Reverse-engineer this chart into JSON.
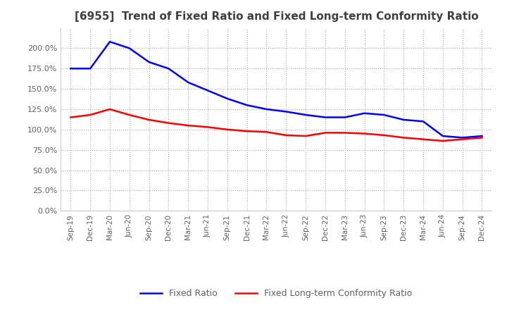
{
  "title": "[6955]  Trend of Fixed Ratio and Fixed Long-term Conformity Ratio",
  "legend": [
    "Fixed Ratio",
    "Fixed Long-term Conformity Ratio"
  ],
  "line_colors": [
    "#0000FF",
    "#FF0000"
  ],
  "x_labels": [
    "Sep-19",
    "Dec-19",
    "Mar-20",
    "Jun-20",
    "Sep-20",
    "Dec-20",
    "Mar-21",
    "Jun-21",
    "Sep-21",
    "Dec-21",
    "Mar-22",
    "Jun-22",
    "Sep-22",
    "Dec-22",
    "Mar-23",
    "Jun-23",
    "Sep-23",
    "Dec-23",
    "Mar-24",
    "Jun-24",
    "Sep-24",
    "Dec-24"
  ],
  "fixed_ratio": [
    175.0,
    175.0,
    208.0,
    200.0,
    183.0,
    175.0,
    158.0,
    148.0,
    138.0,
    130.0,
    125.0,
    122.0,
    118.0,
    115.0,
    115.0,
    120.0,
    118.0,
    112.0,
    110.0,
    92.0,
    90.0,
    92.0
  ],
  "fixed_lt_ratio": [
    115.0,
    118.0,
    125.0,
    118.0,
    112.0,
    108.0,
    105.0,
    103.0,
    100.0,
    98.0,
    97.0,
    93.0,
    92.0,
    96.0,
    96.0,
    95.0,
    93.0,
    90.0,
    88.0,
    86.0,
    88.0,
    90.0
  ],
  "ylim": [
    0.0,
    225.0
  ],
  "yticks": [
    0.0,
    25.0,
    50.0,
    75.0,
    100.0,
    125.0,
    150.0,
    175.0,
    200.0
  ],
  "background_color": "#FFFFFF",
  "grid_color": "#AAAAAA",
  "title_color": "#404040",
  "tick_color": "#606060"
}
